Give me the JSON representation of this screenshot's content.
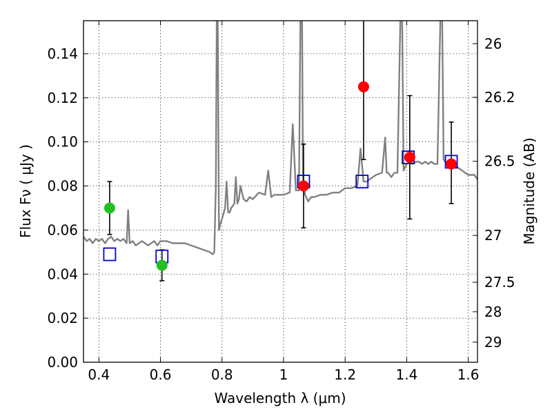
{
  "chart_data": {
    "type": "scatter",
    "title": "",
    "xlabel": "Wavelength  λ (μm)",
    "ylabel": "Flux  Fν ( μJy )",
    "y2label": "Magnitude (AB)",
    "xlim": [
      0.35,
      1.63
    ],
    "ylim": [
      0.0,
      0.155
    ],
    "grid": true,
    "x_ticks": [
      "0.4",
      "0.6",
      "0.8",
      "1",
      "1.2",
      "1.4",
      "1.6"
    ],
    "x_tick_values": [
      0.4,
      0.6,
      0.8,
      1.0,
      1.2,
      1.4,
      1.6
    ],
    "y_ticks": [
      "0.00",
      "0.02",
      "0.04",
      "0.06",
      "0.08",
      "0.10",
      "0.12",
      "0.14"
    ],
    "y_tick_values": [
      0.0,
      0.02,
      0.04,
      0.06,
      0.08,
      0.1,
      0.12,
      0.14
    ],
    "y2_ticks": [
      {
        "label": "26",
        "mag": 26.0
      },
      {
        "label": "26.2",
        "mag": 26.2
      },
      {
        "label": "26.5",
        "mag": 26.5
      },
      {
        "label": "27",
        "mag": 27.0
      },
      {
        "label": "27.5",
        "mag": 27.5
      },
      {
        "label": "28",
        "mag": 28.0
      },
      {
        "label": "29",
        "mag": 29.0
      }
    ],
    "series": [
      {
        "kind": "line",
        "color": "#808080",
        "x": [
          0.35,
          0.36,
          0.37,
          0.38,
          0.39,
          0.4,
          0.41,
          0.42,
          0.43,
          0.44,
          0.45,
          0.46,
          0.47,
          0.48,
          0.49,
          0.495,
          0.5,
          0.51,
          0.52,
          0.53,
          0.54,
          0.55,
          0.56,
          0.57,
          0.58,
          0.59,
          0.6,
          0.62,
          0.64,
          0.66,
          0.68,
          0.7,
          0.72,
          0.74,
          0.76,
          0.77,
          0.775,
          0.78,
          0.783,
          0.786,
          0.79,
          0.795,
          0.8,
          0.81,
          0.815,
          0.82,
          0.825,
          0.83,
          0.84,
          0.845,
          0.85,
          0.855,
          0.86,
          0.87,
          0.88,
          0.89,
          0.9,
          0.92,
          0.94,
          0.95,
          0.96,
          0.97,
          0.98,
          1.0,
          1.02,
          1.03,
          1.04,
          1.05,
          1.055,
          1.06,
          1.063,
          1.066,
          1.07,
          1.08,
          1.09,
          1.1,
          1.12,
          1.14,
          1.16,
          1.18,
          1.2,
          1.22,
          1.24,
          1.25,
          1.26,
          1.27,
          1.28,
          1.3,
          1.32,
          1.33,
          1.335,
          1.34,
          1.35,
          1.36,
          1.37,
          1.38,
          1.385,
          1.39,
          1.4,
          1.41,
          1.42,
          1.43,
          1.44,
          1.45,
          1.46,
          1.47,
          1.48,
          1.49,
          1.5,
          1.51,
          1.515,
          1.52,
          1.53,
          1.54,
          1.55,
          1.56,
          1.57,
          1.58,
          1.59,
          1.6,
          1.62,
          1.63
        ],
        "y": [
          0.057,
          0.055,
          0.056,
          0.054,
          0.056,
          0.055,
          0.056,
          0.054,
          0.056,
          0.057,
          0.055,
          0.056,
          0.055,
          0.056,
          0.054,
          0.069,
          0.054,
          0.055,
          0.053,
          0.054,
          0.055,
          0.054,
          0.053,
          0.054,
          0.055,
          0.053,
          0.055,
          0.055,
          0.054,
          0.054,
          0.054,
          0.053,
          0.052,
          0.051,
          0.05,
          0.049,
          0.05,
          0.08,
          0.16,
          0.16,
          0.06,
          0.063,
          0.065,
          0.07,
          0.082,
          0.068,
          0.068,
          0.07,
          0.072,
          0.084,
          0.072,
          0.074,
          0.08,
          0.074,
          0.073,
          0.075,
          0.074,
          0.077,
          0.076,
          0.087,
          0.075,
          0.076,
          0.076,
          0.076,
          0.077,
          0.108,
          0.078,
          0.078,
          0.16,
          0.16,
          0.084,
          0.08,
          0.076,
          0.073,
          0.075,
          0.075,
          0.076,
          0.076,
          0.077,
          0.077,
          0.079,
          0.079,
          0.08,
          0.097,
          0.082,
          0.082,
          0.083,
          0.085,
          0.086,
          0.102,
          0.086,
          0.086,
          0.084,
          0.086,
          0.086,
          0.16,
          0.16,
          0.087,
          0.09,
          0.091,
          0.09,
          0.091,
          0.091,
          0.09,
          0.091,
          0.09,
          0.091,
          0.09,
          0.09,
          0.16,
          0.16,
          0.092,
          0.09,
          0.09,
          0.089,
          0.089,
          0.088,
          0.087,
          0.086,
          0.085,
          0.085,
          0.083
        ]
      },
      {
        "kind": "errorbar",
        "color": "#22c022",
        "points": [
          {
            "x": 0.435,
            "y": 0.07,
            "yerr_low": 0.058,
            "yerr_high": 0.082
          },
          {
            "x": 0.605,
            "y": 0.044,
            "yerr_low": 0.037,
            "yerr_high": 0.051
          }
        ]
      },
      {
        "kind": "errorbar",
        "color": "#ff0000",
        "points": [
          {
            "x": 1.065,
            "y": 0.08,
            "yerr_low": 0.061,
            "yerr_high": 0.099
          },
          {
            "x": 1.26,
            "y": 0.125,
            "yerr_low": 0.092,
            "yerr_high": 0.16
          },
          {
            "x": 1.41,
            "y": 0.093,
            "yerr_low": 0.065,
            "yerr_high": 0.121
          },
          {
            "x": 1.545,
            "y": 0.09,
            "yerr_low": 0.072,
            "yerr_high": 0.109
          }
        ]
      },
      {
        "kind": "open-square",
        "color": "#0000cc",
        "points": [
          {
            "x": 0.435,
            "y": 0.049
          },
          {
            "x": 0.605,
            "y": 0.048
          },
          {
            "x": 1.065,
            "y": 0.082
          },
          {
            "x": 1.255,
            "y": 0.082
          },
          {
            "x": 1.405,
            "y": 0.093
          },
          {
            "x": 1.545,
            "y": 0.091
          }
        ]
      }
    ]
  }
}
